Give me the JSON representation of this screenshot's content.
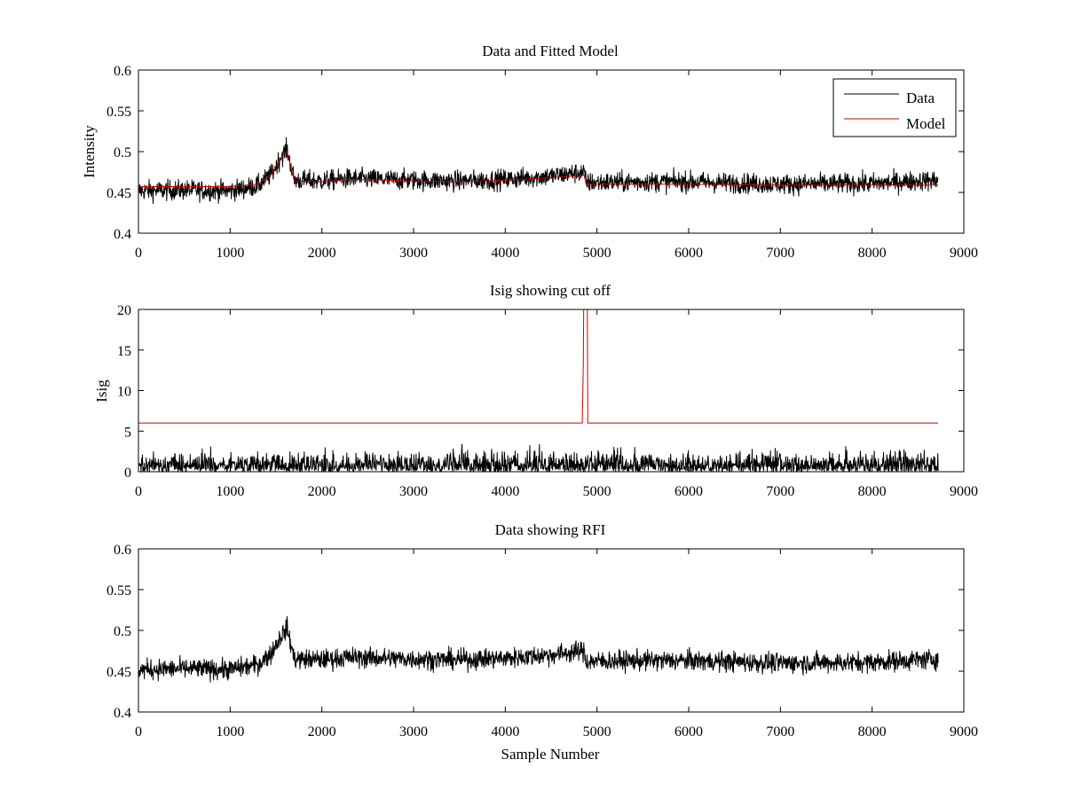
{
  "colors": {
    "background": "#ffffff",
    "data_line": "#000000",
    "model_line": "#cc0000",
    "axes": "#000000"
  },
  "chart_data": [
    {
      "type": "line",
      "title": "Data and Fitted Model",
      "xlabel": "",
      "ylabel": "Intensity",
      "xlim": [
        0,
        9000
      ],
      "ylim": [
        0.4,
        0.6
      ],
      "xticks": [
        "0",
        "1000",
        "2000",
        "3000",
        "4000",
        "5000",
        "6000",
        "7000",
        "8000",
        "9000"
      ],
      "yticks": [
        "0.4",
        "0.45",
        "0.5",
        "0.55",
        "0.6"
      ],
      "legend": {
        "placement": "top-right",
        "entries": [
          "Data",
          "Model"
        ]
      },
      "series": [
        {
          "name": "Data",
          "color": "#000000",
          "noise": 0.006,
          "x": [
            0,
            500,
            1000,
            1300,
            1450,
            1550,
            1620,
            1700,
            2000,
            2300,
            3000,
            3500,
            4000,
            4500,
            4860,
            4880,
            5500,
            6000,
            7000,
            8000,
            8500,
            8720
          ],
          "y": [
            0.452,
            0.453,
            0.452,
            0.458,
            0.472,
            0.493,
            0.503,
            0.465,
            0.464,
            0.467,
            0.465,
            0.464,
            0.466,
            0.47,
            0.475,
            0.462,
            0.463,
            0.463,
            0.46,
            0.461,
            0.464,
            0.465
          ]
        },
        {
          "name": "Model",
          "color": "#cc0000",
          "noise": 0,
          "x": [
            0,
            500,
            1000,
            1300,
            1450,
            1550,
            1620,
            1700,
            2000,
            2300,
            3000,
            3500,
            4000,
            4500,
            4860,
            4880,
            5500,
            6000,
            7000,
            8000,
            8500,
            8720
          ],
          "y": [
            0.457,
            0.457,
            0.457,
            0.46,
            0.472,
            0.492,
            0.5,
            0.464,
            0.463,
            0.466,
            0.464,
            0.463,
            0.465,
            0.468,
            0.471,
            0.46,
            0.46,
            0.46,
            0.459,
            0.459,
            0.459,
            0.459
          ]
        }
      ]
    },
    {
      "type": "line",
      "title": "Isig showing cut off",
      "xlabel": "",
      "ylabel": "Isig",
      "xlim": [
        0,
        9000
      ],
      "ylim": [
        0,
        20
      ],
      "xticks": [
        "0",
        "1000",
        "2000",
        "3000",
        "4000",
        "5000",
        "6000",
        "7000",
        "8000",
        "9000"
      ],
      "yticks": [
        "0",
        "5",
        "10",
        "15",
        "20"
      ],
      "series": [
        {
          "color": "#000000",
          "noise": 0,
          "x": [
            0,
            8720
          ],
          "y": [
            1.0,
            1.0
          ],
          "abs_noise": 1.4
        },
        {
          "color": "#cc0000",
          "noise": 0,
          "x": [
            0,
            4830,
            4840,
            4850,
            4855,
            4895,
            4900,
            8720
          ],
          "y": [
            6,
            6,
            6,
            13,
            20,
            20,
            6,
            6
          ]
        }
      ]
    },
    {
      "type": "line",
      "title": "Data showing RFI",
      "xlabel": "Sample Number",
      "ylabel": "",
      "xlim": [
        0,
        9000
      ],
      "ylim": [
        0.4,
        0.6
      ],
      "xticks": [
        "0",
        "1000",
        "2000",
        "3000",
        "4000",
        "5000",
        "6000",
        "7000",
        "8000",
        "9000"
      ],
      "yticks": [
        "0.4",
        "0.45",
        "0.5",
        "0.55",
        "0.6"
      ],
      "series": [
        {
          "color": "#000000",
          "noise": 0.006,
          "x": [
            0,
            500,
            1000,
            1300,
            1450,
            1550,
            1620,
            1700,
            2000,
            2300,
            3000,
            3500,
            4000,
            4500,
            4860,
            4880,
            5500,
            6000,
            7000,
            8000,
            8500,
            8720
          ],
          "y": [
            0.452,
            0.453,
            0.452,
            0.458,
            0.472,
            0.493,
            0.503,
            0.465,
            0.464,
            0.467,
            0.465,
            0.464,
            0.466,
            0.47,
            0.475,
            0.462,
            0.463,
            0.463,
            0.46,
            0.461,
            0.464,
            0.465
          ]
        }
      ]
    }
  ]
}
